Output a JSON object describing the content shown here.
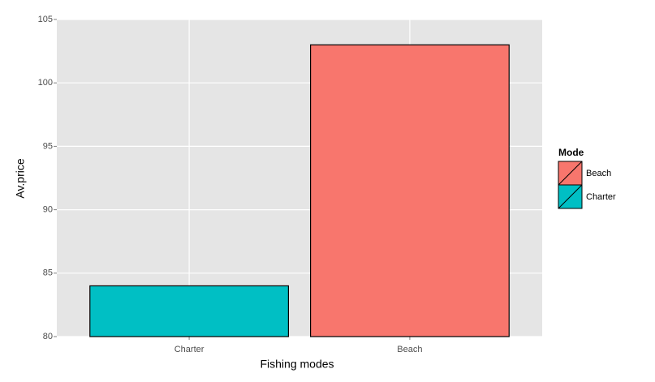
{
  "chart_data": {
    "type": "bar",
    "x_label": "Fishing modes",
    "y_label": "Av.price",
    "categories": [
      "Charter",
      "Beach"
    ],
    "values": [
      84,
      103
    ],
    "colors": [
      "#00BFC4",
      "#F8766D"
    ],
    "ylim": [
      80,
      105
    ],
    "yticks": [
      80,
      85,
      90,
      95,
      100,
      105
    ],
    "grid": true,
    "legend": {
      "title": "Mode",
      "position": "right",
      "entries": [
        {
          "name": "Beach",
          "color": "#F8766D"
        },
        {
          "name": "Charter",
          "color": "#00BFC4"
        }
      ]
    }
  }
}
